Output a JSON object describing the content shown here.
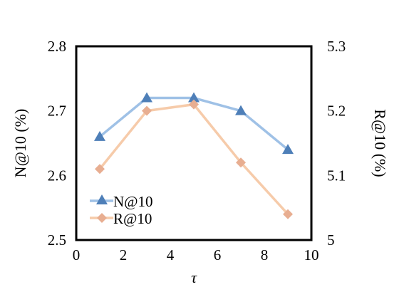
{
  "chart_data": {
    "type": "line",
    "x": [
      1,
      3,
      5,
      7,
      9
    ],
    "xlabel": "τ",
    "xlim": [
      0,
      10
    ],
    "xticks": [
      "0",
      "2",
      "4",
      "6",
      "8",
      "10"
    ],
    "ylabel_left": "N@10 (%)",
    "ylim_left": [
      2.5,
      2.8
    ],
    "yticks_left": [
      "2.5",
      "2.6",
      "2.7",
      "2.8"
    ],
    "ylabel_right": "R@10 (%)",
    "ylim_right": [
      5.0,
      5.3
    ],
    "yticks_right": [
      "5",
      "5.1",
      "5.2",
      "5.3"
    ],
    "grid": false,
    "legend_position": "bottom-left",
    "series": [
      {
        "name": "N@10",
        "axis": "left",
        "values": [
          2.66,
          2.72,
          2.72,
          2.7,
          2.64
        ],
        "line_color": "#9fc1e6",
        "marker_color": "#4e7fb8",
        "marker": "triangle"
      },
      {
        "name": "R@10",
        "axis": "right",
        "values": [
          5.11,
          5.2,
          5.21,
          5.12,
          5.04
        ],
        "line_color": "#f6cbaa",
        "marker_color": "#e8ae91",
        "marker": "diamond"
      }
    ]
  }
}
